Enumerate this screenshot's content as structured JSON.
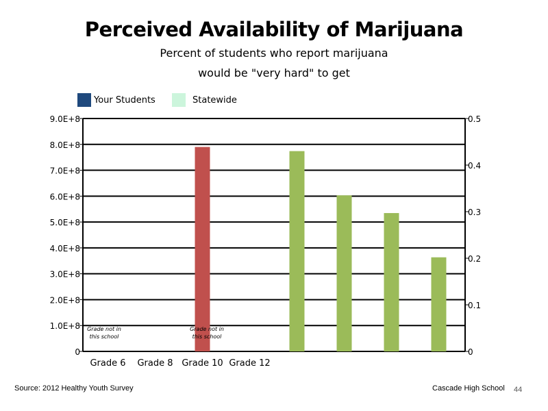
{
  "chart_data": {
    "type": "bar",
    "title": "Perceived Availability of Marijuana",
    "subtitle_lines": [
      "Percent of students who report marijuana",
      "would be \"very hard\" to get"
    ],
    "categories": [
      "Grade 6",
      "Grade 8",
      "Grade 10",
      "Grade 12"
    ],
    "series": [
      {
        "name": "Your Students",
        "axis": "left",
        "color": "#1f497d",
        "values": [
          null,
          null,
          null,
          null
        ]
      },
      {
        "name": "Statewide",
        "axis": "right",
        "color": "#ccf5dc",
        "values": [
          null,
          null,
          null,
          null
        ]
      }
    ],
    "extra_bars": [
      {
        "axis": "left",
        "color": "#c0504d",
        "values": [
          790000000
        ]
      },
      {
        "axis": "right",
        "color": "#9bbb59",
        "values": [
          0.43,
          0.335,
          0.297,
          0.202
        ]
      }
    ],
    "left_axis": {
      "ylim": [
        0,
        900000000
      ],
      "ticks": [
        0,
        100000000,
        200000000,
        300000000,
        400000000,
        500000000,
        600000000,
        700000000,
        800000000,
        900000000
      ],
      "tick_labels": [
        "0",
        "1.0E+8",
        "2.0E+8",
        "3.0E+8",
        "4.0E+8",
        "5.0E+8",
        "6.0E+8",
        "7.0E+8",
        "8.0E+8",
        "9.0E+8"
      ]
    },
    "right_axis": {
      "ylim": [
        0,
        0.5
      ],
      "ticks": [
        0,
        0.1,
        0.2,
        0.3,
        0.4,
        0.5
      ],
      "tick_labels": [
        "0",
        "0.1",
        "0.2",
        "0.3",
        "0.4",
        "0.5"
      ]
    },
    "gridlines": true,
    "legend": "top-left",
    "annotations": [
      {
        "category": "Grade 6",
        "text": [
          "Grade not in",
          "this school"
        ]
      },
      {
        "category": "Grade 10",
        "text": [
          "Grade not in",
          "this school"
        ]
      }
    ]
  },
  "footer": {
    "source": "Source: 2012 Healthy Youth Survey",
    "school": "Cascade High School",
    "page_number": "44"
  }
}
